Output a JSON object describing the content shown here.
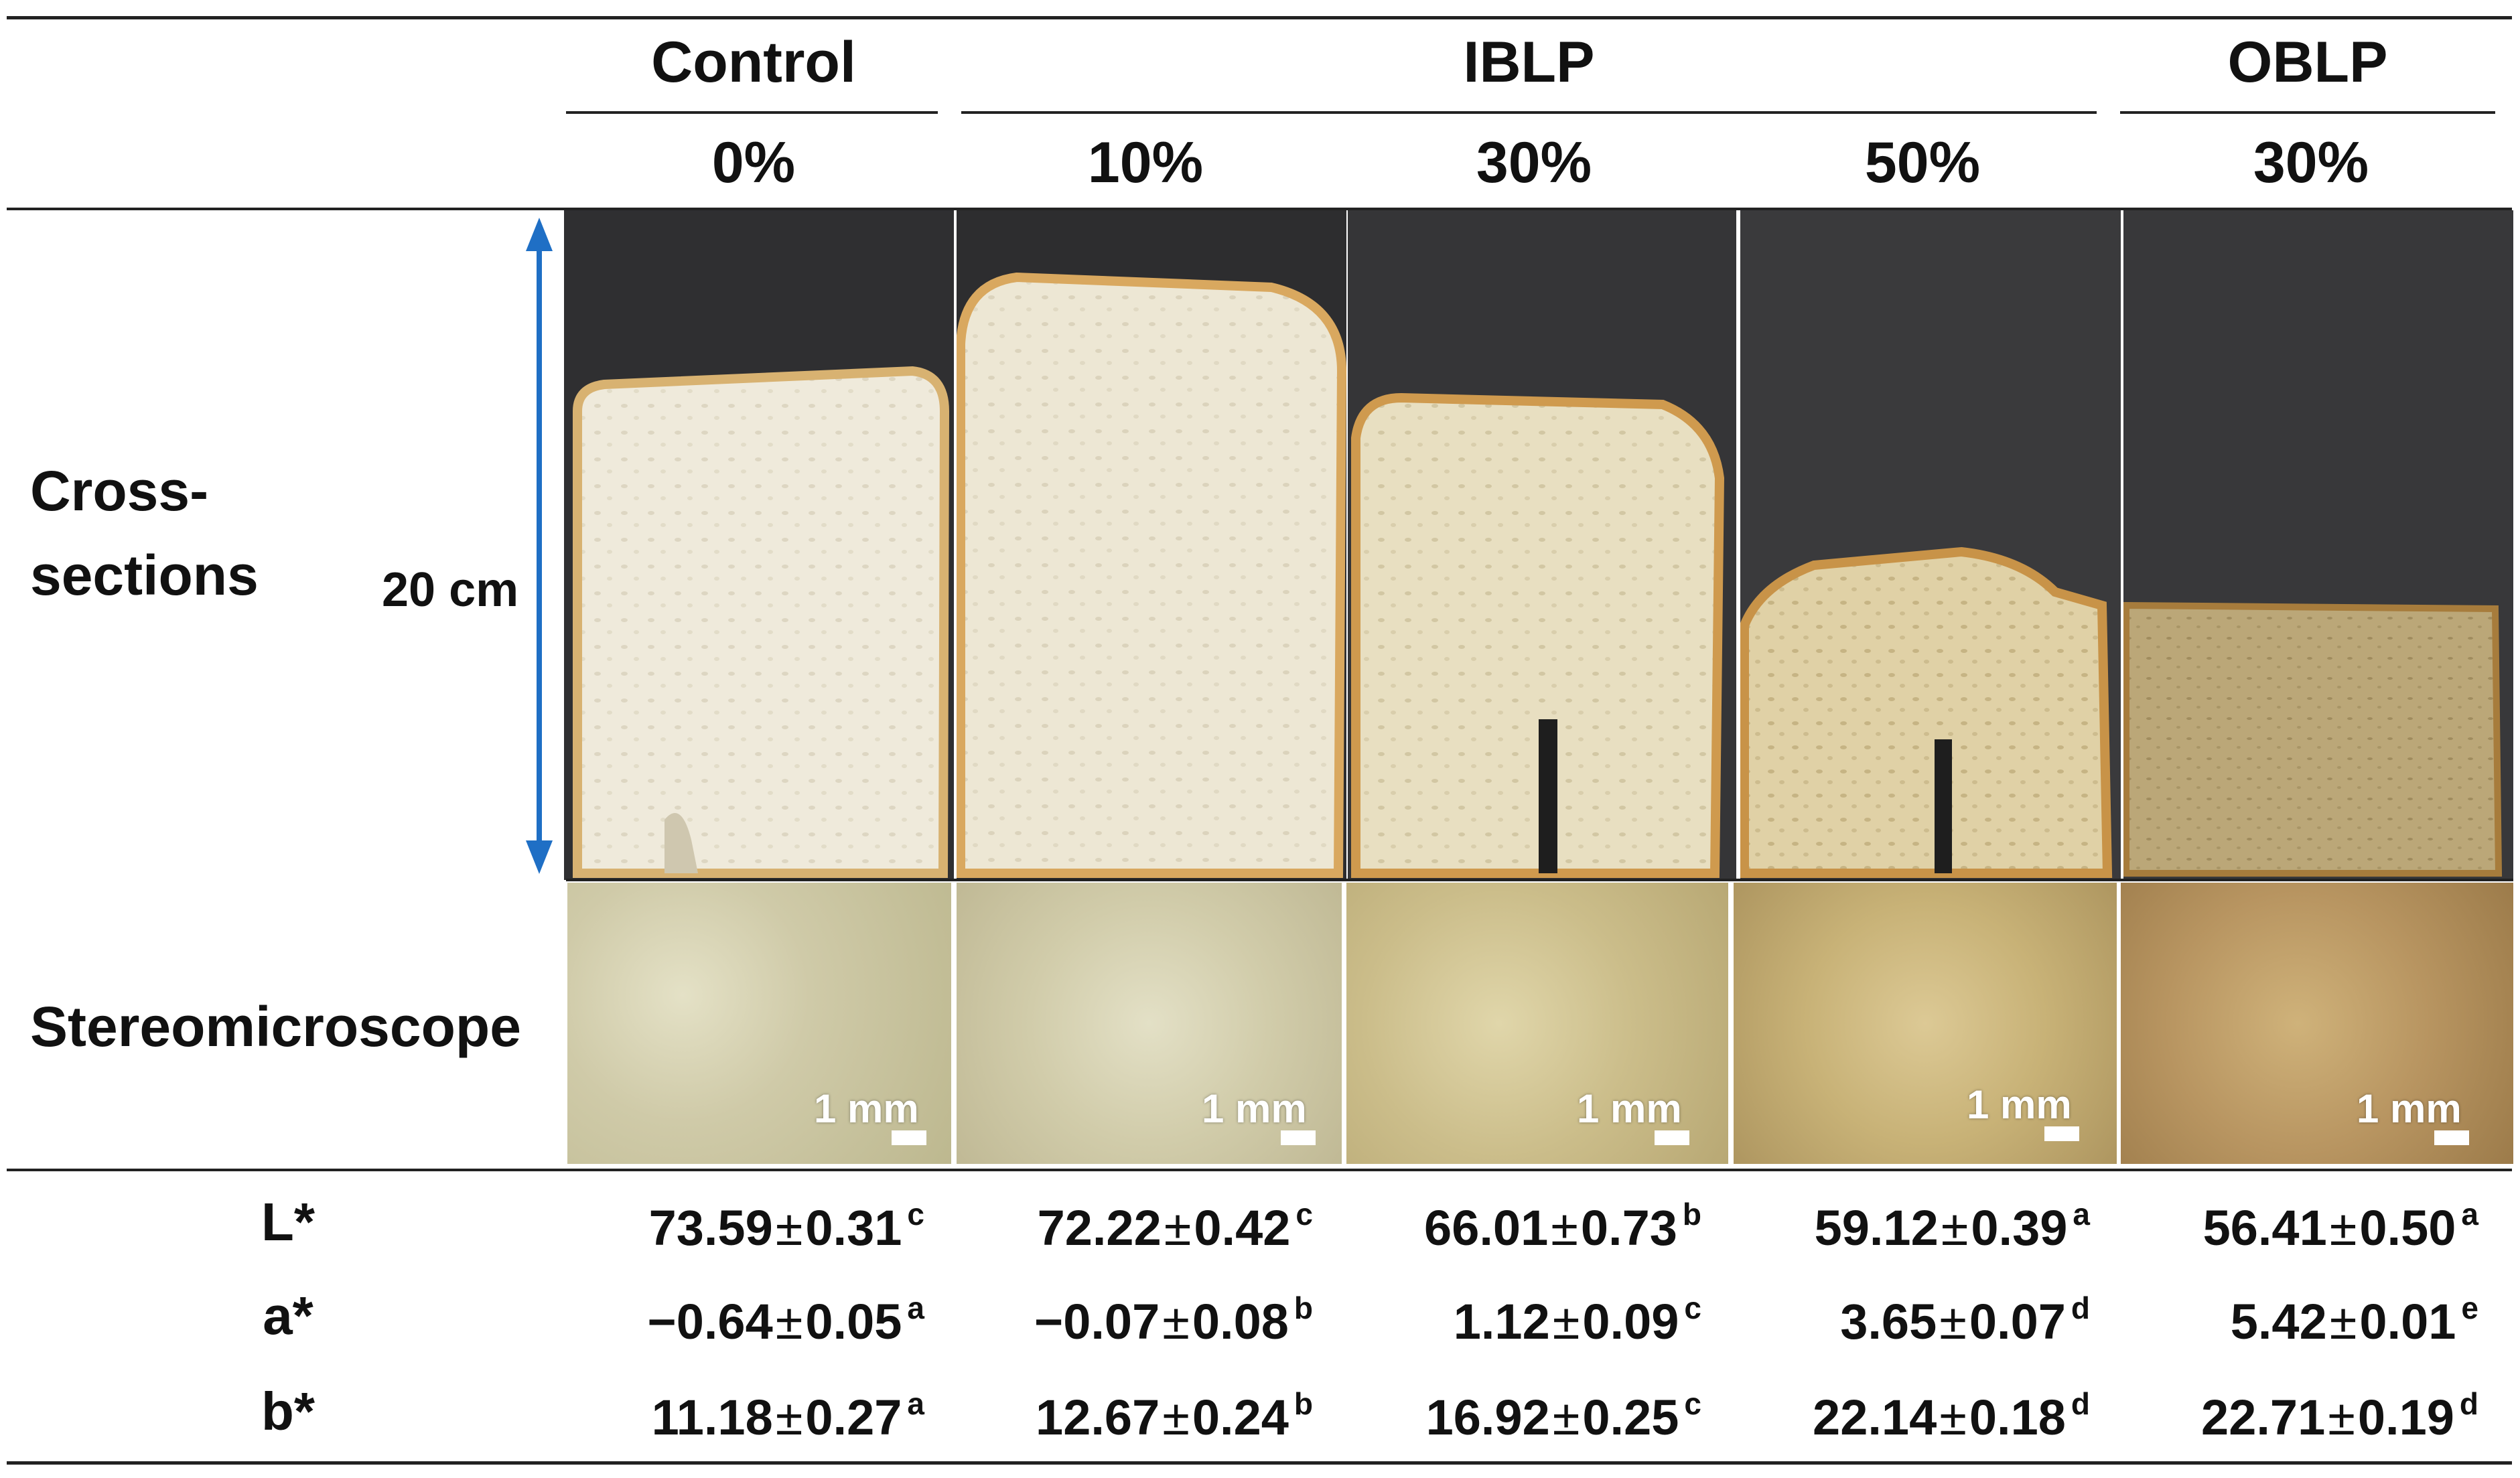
{
  "header": {
    "groups": [
      {
        "label": "Control"
      },
      {
        "label": "IBLP"
      },
      {
        "label": "OBLP"
      }
    ],
    "levels": [
      "0%",
      "10%",
      "30%",
      "50%",
      "30%"
    ]
  },
  "rows": {
    "cross_sections": {
      "label_line1": "Cross-",
      "label_line2": "sections",
      "scale": "20 cm"
    },
    "stereomicroscope": {
      "label": "Stereomicroscope",
      "scale_label": "1 mm"
    }
  },
  "colors": {
    "scale_arrow": "#1f6fc5",
    "backdrop": "#3a3a3c",
    "crumb_control": "#efeadb",
    "crumb_oblp": "#bba778"
  },
  "color_table": [
    {
      "param": "L*",
      "values": [
        {
          "v": "73.59",
          "sd": "0.31",
          "sig": "c"
        },
        {
          "v": "72.22",
          "sd": "0.42",
          "sig": "c"
        },
        {
          "v": "66.01",
          "sd": "0.73",
          "sig": "b"
        },
        {
          "v": "59.12",
          "sd": "0.39",
          "sig": "a"
        },
        {
          "v": "56.41",
          "sd": "0.50",
          "sig": "a"
        }
      ]
    },
    {
      "param": "a*",
      "values": [
        {
          "v": "−0.64",
          "sd": "0.05",
          "sig": "a"
        },
        {
          "v": "−0.07",
          "sd": "0.08",
          "sig": "b"
        },
        {
          "v": "1.12",
          "sd": "0.09",
          "sig": "c"
        },
        {
          "v": "3.65",
          "sd": "0.07",
          "sig": "d"
        },
        {
          "v": "5.42",
          "sd": "0.01",
          "sig": "e"
        }
      ]
    },
    {
      "param": "b*",
      "values": [
        {
          "v": "11.18",
          "sd": "0.27",
          "sig": "a"
        },
        {
          "v": "12.67",
          "sd": "0.24",
          "sig": "b"
        },
        {
          "v": "16.92",
          "sd": "0.25",
          "sig": "c"
        },
        {
          "v": "22.14",
          "sd": "0.18",
          "sig": "d"
        },
        {
          "v": "22.71",
          "sd": "0.19",
          "sig": "d"
        }
      ]
    }
  ]
}
